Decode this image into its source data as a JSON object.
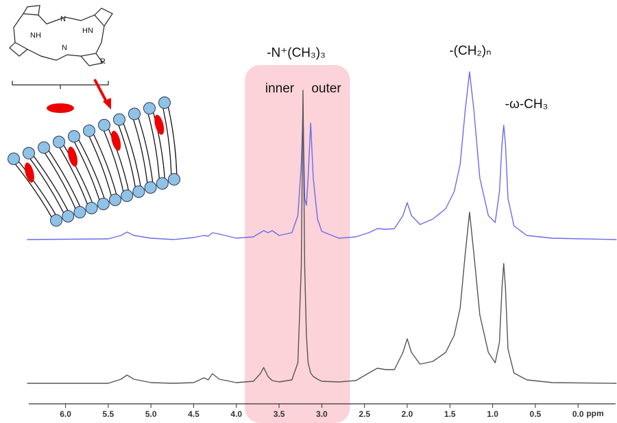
{
  "chart_data": {
    "type": "line",
    "xlabel": "ppm",
    "xlim": [
      6.43,
      -0.44
    ],
    "xticks": [
      {
        "value": 6,
        "label": "6.0"
      },
      5.5,
      {
        "value": 5,
        "label": "5.0"
      },
      4.5,
      {
        "value": 4,
        "label": "4.0"
      },
      3.5,
      {
        "value": 3,
        "label": "3.0"
      },
      2.5,
      {
        "value": 2,
        "label": "2.0"
      },
      1.5,
      {
        "value": 1,
        "label": "1.0"
      },
      0.5,
      {
        "value": 0,
        "label": "0.0"
      }
    ],
    "ylim": [
      0,
      490
    ],
    "highlight": {
      "from": 3.9,
      "to": 2.67,
      "color": "#fbd3d8"
    },
    "annotations": [
      "-N⁺(CH₃)₃",
      "inner",
      "outer",
      "-(CH₂)ₙ",
      "-ω-CH₃"
    ],
    "structure_labels": [
      "N",
      "NH",
      "HN",
      "N",
      "R"
    ],
    "x": [
      6.45,
      5.5,
      5.35,
      5.28,
      5.2,
      5.0,
      4.73,
      4.5,
      4.38,
      4.33,
      4.28,
      4.2,
      4.0,
      3.8,
      3.72,
      3.68,
      3.63,
      3.58,
      3.5,
      3.35,
      3.28,
      3.24,
      3.22,
      3.2,
      3.18,
      3.16,
      3.13,
      3.1,
      3.05,
      3.0,
      2.8,
      2.6,
      2.45,
      2.35,
      2.25,
      2.15,
      2.05,
      2.0,
      1.95,
      1.85,
      1.7,
      1.55,
      1.45,
      1.38,
      1.32,
      1.27,
      1.22,
      1.15,
      1.05,
      0.97,
      0.92,
      0.89,
      0.87,
      0.85,
      0.82,
      0.75,
      0.6,
      0.3,
      -0.45
    ],
    "series": [
      {
        "color": "#6a6aee",
        "values": [
          240,
          241,
          246,
          251,
          246,
          242,
          240,
          243,
          246,
          245,
          250,
          248,
          242,
          244,
          250,
          253,
          250,
          253,
          246,
          250,
          275,
          350,
          427,
          300,
          290,
          330,
          410,
          330,
          270,
          252,
          242,
          244,
          250,
          256,
          255,
          256,
          275,
          294,
          275,
          262,
          270,
          285,
          310,
          350,
          430,
          485,
          430,
          330,
          275,
          265,
          310,
          380,
          407,
          380,
          300,
          260,
          246,
          242,
          240
        ]
      },
      {
        "color": "#555555",
        "values": [
          30,
          30,
          36,
          42,
          36,
          31,
          30,
          31,
          38,
          35,
          44,
          36,
          31,
          33,
          44,
          53,
          40,
          34,
          32,
          35,
          60,
          200,
          458,
          200,
          100,
          60,
          45,
          40,
          36,
          33,
          32,
          34,
          45,
          52,
          50,
          50,
          75,
          95,
          75,
          58,
          62,
          75,
          100,
          140,
          220,
          280,
          220,
          130,
          75,
          60,
          90,
          170,
          205,
          170,
          80,
          45,
          35,
          31,
          30
        ]
      }
    ]
  }
}
